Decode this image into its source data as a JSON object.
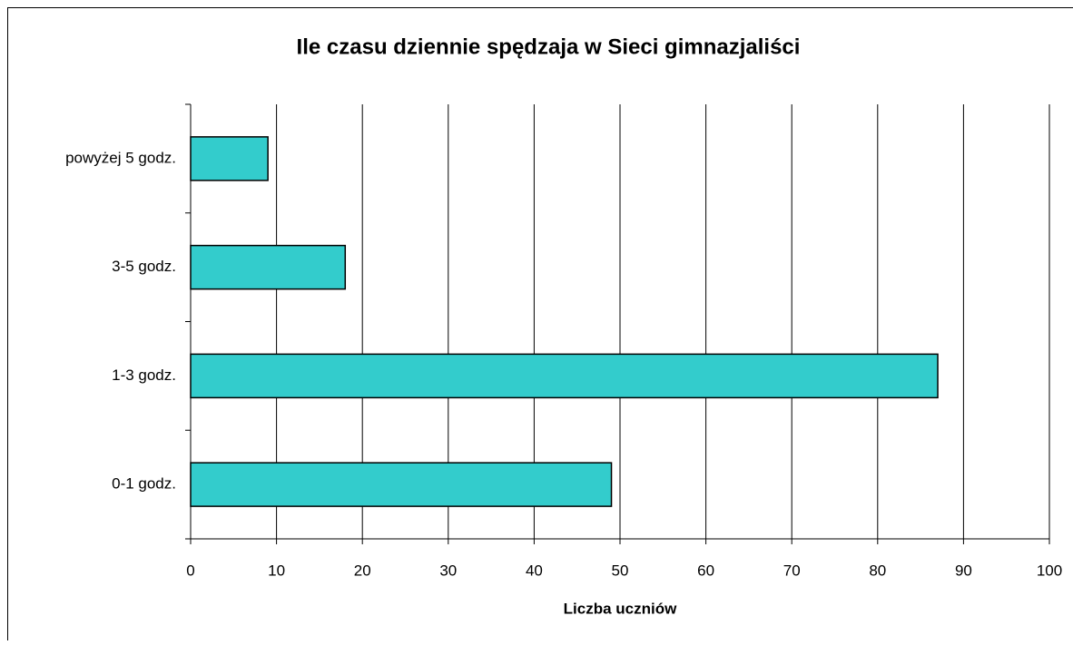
{
  "chart_data": {
    "type": "barh",
    "title": "Ile czasu dziennie spędzaja w Sieci gimnazjaliści",
    "xlabel": "Liczba uczniów",
    "categories": [
      "0-1 godz.",
      "1-3 godz.",
      "3-5 godz.",
      "powyżej 5 godz."
    ],
    "values": [
      49,
      87,
      18,
      9
    ],
    "color": "#33cccc",
    "xlim": [
      0,
      100
    ],
    "xticks": [
      0,
      10,
      20,
      30,
      40,
      50,
      60,
      70,
      80,
      90,
      100
    ],
    "grid": true
  }
}
